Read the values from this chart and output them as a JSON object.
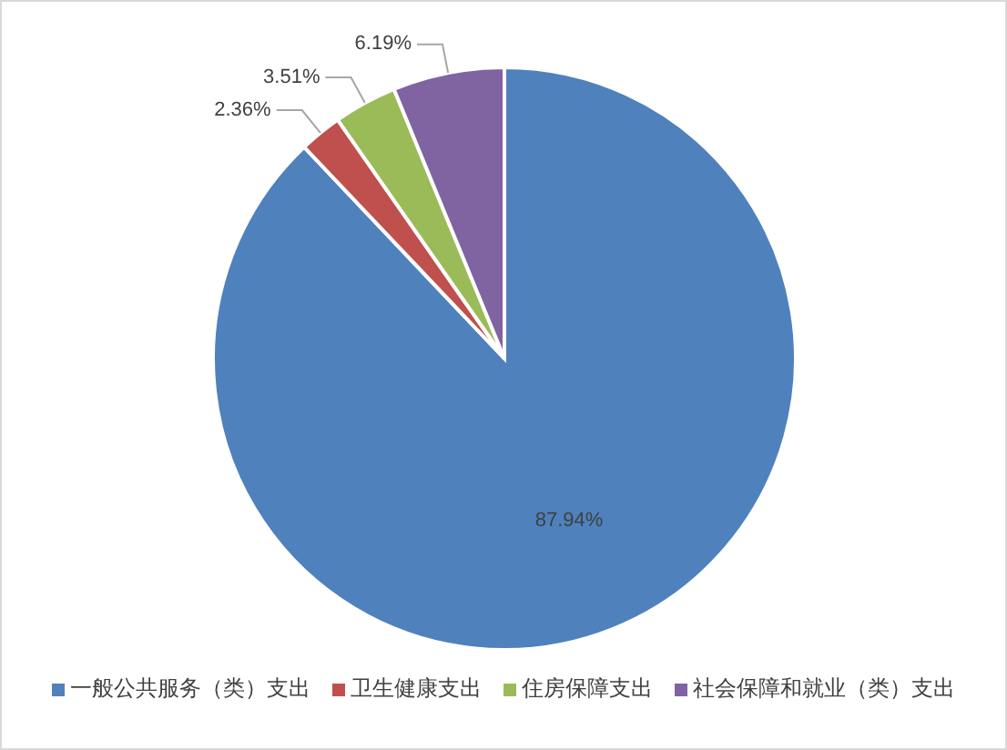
{
  "chart_data": {
    "type": "pie",
    "categories": [
      "一般公共服务（类）支出",
      "卫生健康支出",
      "住房保障支出",
      "社会保障和就业（类）支出"
    ],
    "values": [
      87.94,
      2.36,
      3.51,
      6.19
    ],
    "colors": [
      "#4f81bd",
      "#c0504d",
      "#9bbb59",
      "#8064a2"
    ],
    "value_labels": [
      "87.94%",
      "2.36%",
      "3.51%",
      "6.19%"
    ],
    "legend": "bottom"
  }
}
